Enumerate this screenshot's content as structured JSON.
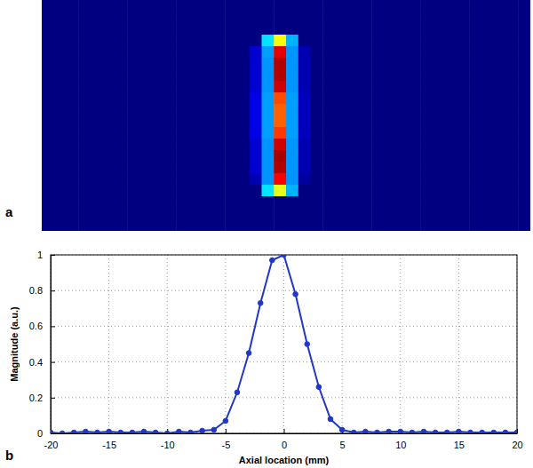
{
  "chart_data": [
    {
      "type": "heatmap",
      "title": "a",
      "color": "jet",
      "zlim": [
        0,
        1
      ],
      "tick_labels": false,
      "values": [
        [
          0,
          0,
          0,
          0,
          0,
          0,
          0,
          0,
          0,
          0,
          0,
          0,
          0,
          0,
          0,
          0,
          0,
          0,
          0,
          0,
          0,
          0,
          0,
          0,
          0,
          0,
          0,
          0,
          0,
          0,
          0,
          0,
          0,
          0,
          0,
          0,
          0,
          0,
          0,
          0
        ],
        [
          0,
          0,
          0,
          0,
          0,
          0,
          0,
          0,
          0,
          0,
          0,
          0,
          0,
          0,
          0,
          0,
          0,
          0,
          0,
          0,
          0,
          0,
          0,
          0,
          0,
          0,
          0,
          0,
          0,
          0,
          0,
          0,
          0,
          0,
          0,
          0,
          0,
          0,
          0,
          0
        ],
        [
          0,
          0,
          0,
          0,
          0,
          0,
          0,
          0,
          0,
          0,
          0,
          0,
          0,
          0,
          0,
          0,
          0,
          0,
          0,
          0,
          0,
          0,
          0,
          0,
          0,
          0,
          0,
          0,
          0,
          0,
          0,
          0,
          0,
          0,
          0,
          0,
          0,
          0,
          0,
          0
        ],
        [
          0,
          0,
          0,
          0,
          0,
          0,
          0,
          0,
          0,
          0,
          0,
          0,
          0,
          0,
          0,
          0,
          0,
          0,
          0.35,
          0.62,
          0.3,
          0,
          0,
          0,
          0,
          0,
          0,
          0,
          0,
          0,
          0,
          0,
          0,
          0,
          0,
          0,
          0,
          0,
          0,
          0
        ],
        [
          0,
          0,
          0,
          0,
          0,
          0,
          0,
          0,
          0,
          0,
          0,
          0,
          0,
          0,
          0,
          0,
          0,
          0.08,
          0.28,
          0.9,
          0.27,
          0.05,
          0,
          0,
          0,
          0,
          0,
          0,
          0,
          0,
          0,
          0,
          0,
          0,
          0,
          0,
          0,
          0,
          0,
          0
        ],
        [
          0,
          0,
          0,
          0,
          0,
          0,
          0,
          0,
          0,
          0,
          0,
          0,
          0,
          0,
          0,
          0,
          0,
          0.08,
          0.27,
          0.95,
          0.27,
          0.05,
          0,
          0,
          0,
          0,
          0,
          0,
          0,
          0,
          0,
          0,
          0,
          0,
          0,
          0,
          0,
          0,
          0,
          0
        ],
        [
          0,
          0,
          0,
          0,
          0,
          0,
          0,
          0,
          0,
          0,
          0,
          0,
          0,
          0,
          0,
          0,
          0,
          0.08,
          0.27,
          0.95,
          0.27,
          0.05,
          0,
          0,
          0,
          0,
          0,
          0,
          0,
          0,
          0,
          0,
          0,
          0,
          0,
          0,
          0,
          0,
          0,
          0
        ],
        [
          0,
          0,
          0,
          0,
          0,
          0,
          0,
          0,
          0,
          0,
          0,
          0,
          0,
          0,
          0,
          0,
          0,
          0.08,
          0.27,
          0.92,
          0.27,
          0.05,
          0,
          0,
          0,
          0,
          0,
          0,
          0,
          0,
          0,
          0,
          0,
          0,
          0,
          0,
          0,
          0,
          0,
          0
        ],
        [
          0,
          0,
          0,
          0,
          0,
          0,
          0,
          0,
          0,
          0,
          0,
          0,
          0,
          0,
          0,
          0,
          0,
          0.1,
          0.28,
          0.8,
          0.28,
          0.06,
          0,
          0,
          0,
          0,
          0,
          0,
          0,
          0,
          0,
          0,
          0,
          0,
          0,
          0,
          0,
          0,
          0,
          0
        ],
        [
          0,
          0,
          0,
          0,
          0,
          0,
          0,
          0,
          0,
          0,
          0,
          0,
          0,
          0,
          0,
          0,
          0,
          0.1,
          0.28,
          0.78,
          0.28,
          0.06,
          0,
          0,
          0,
          0,
          0,
          0,
          0,
          0,
          0,
          0,
          0,
          0,
          0,
          0,
          0,
          0,
          0,
          0
        ],
        [
          0,
          0,
          0,
          0,
          0,
          0,
          0,
          0,
          0,
          0,
          0,
          0,
          0,
          0,
          0,
          0,
          0,
          0.1,
          0.28,
          0.78,
          0.28,
          0.06,
          0,
          0,
          0,
          0,
          0,
          0,
          0,
          0,
          0,
          0,
          0,
          0,
          0,
          0,
          0,
          0,
          0,
          0
        ],
        [
          0,
          0,
          0,
          0,
          0,
          0,
          0,
          0,
          0,
          0,
          0,
          0,
          0,
          0,
          0,
          0,
          0,
          0.1,
          0.28,
          0.82,
          0.28,
          0.06,
          0,
          0,
          0,
          0,
          0,
          0,
          0,
          0,
          0,
          0,
          0,
          0,
          0,
          0,
          0,
          0,
          0,
          0
        ],
        [
          0,
          0,
          0,
          0,
          0,
          0,
          0,
          0,
          0,
          0,
          0,
          0,
          0,
          0,
          0,
          0,
          0,
          0.08,
          0.27,
          0.92,
          0.27,
          0.05,
          0,
          0,
          0,
          0,
          0,
          0,
          0,
          0,
          0,
          0,
          0,
          0,
          0,
          0,
          0,
          0,
          0,
          0
        ],
        [
          0,
          0,
          0,
          0,
          0,
          0,
          0,
          0,
          0,
          0,
          0,
          0,
          0,
          0,
          0,
          0,
          0,
          0.08,
          0.27,
          0.96,
          0.27,
          0.05,
          0,
          0,
          0,
          0,
          0,
          0,
          0,
          0,
          0,
          0,
          0,
          0,
          0,
          0,
          0,
          0,
          0,
          0
        ],
        [
          0,
          0,
          0,
          0,
          0,
          0,
          0,
          0,
          0,
          0,
          0,
          0,
          0,
          0,
          0,
          0,
          0,
          0.08,
          0.27,
          0.95,
          0.27,
          0.05,
          0,
          0,
          0,
          0,
          0,
          0,
          0,
          0,
          0,
          0,
          0,
          0,
          0,
          0,
          0,
          0,
          0,
          0
        ],
        [
          0,
          0,
          0,
          0,
          0,
          0,
          0,
          0,
          0,
          0,
          0,
          0,
          0,
          0,
          0,
          0,
          0,
          0.05,
          0.27,
          0.88,
          0.27,
          0.03,
          0,
          0,
          0,
          0,
          0,
          0,
          0,
          0,
          0,
          0,
          0,
          0,
          0,
          0,
          0,
          0,
          0,
          0
        ],
        [
          0,
          0,
          0,
          0,
          0,
          0,
          0,
          0,
          0,
          0,
          0,
          0,
          0,
          0,
          0,
          0,
          0,
          0,
          0.35,
          0.6,
          0.3,
          0,
          0,
          0,
          0,
          0,
          0,
          0,
          0,
          0,
          0,
          0,
          0,
          0,
          0,
          0,
          0,
          0,
          0,
          0
        ],
        [
          0,
          0,
          0,
          0,
          0,
          0,
          0,
          0,
          0,
          0,
          0,
          0,
          0,
          0,
          0,
          0,
          0,
          0,
          0,
          0,
          0,
          0,
          0,
          0,
          0,
          0,
          0,
          0,
          0,
          0,
          0,
          0,
          0,
          0,
          0,
          0,
          0,
          0,
          0,
          0
        ],
        [
          0,
          0,
          0,
          0,
          0,
          0,
          0,
          0,
          0,
          0,
          0,
          0,
          0,
          0,
          0,
          0,
          0,
          0,
          0,
          0,
          0,
          0,
          0,
          0,
          0,
          0,
          0,
          0,
          0,
          0,
          0,
          0,
          0,
          0,
          0,
          0,
          0,
          0,
          0,
          0
        ],
        [
          0,
          0,
          0,
          0,
          0,
          0,
          0,
          0,
          0,
          0,
          0,
          0,
          0,
          0,
          0,
          0,
          0,
          0,
          0,
          0,
          0,
          0,
          0,
          0,
          0,
          0,
          0,
          0,
          0,
          0,
          0,
          0,
          0,
          0,
          0,
          0,
          0,
          0,
          0,
          0
        ]
      ]
    },
    {
      "type": "line",
      "title": "b",
      "x_label": "Axial location (mm)",
      "y_label": "Magnitude (a.u.)",
      "x": [
        -20,
        -19,
        -18,
        -17,
        -16,
        -15,
        -14,
        -13,
        -12,
        -11,
        -10,
        -9,
        -8,
        -7,
        -6,
        -5,
        -4,
        -3,
        -2,
        -1,
        0,
        1,
        2,
        3,
        4,
        5,
        6,
        7,
        8,
        9,
        10,
        11,
        12,
        13,
        14,
        15,
        16,
        17,
        18,
        19,
        20
      ],
      "values": [
        0.005,
        0,
        0.005,
        0.01,
        0.005,
        0.01,
        0.005,
        0.005,
        0.01,
        0.005,
        0,
        0.01,
        0.005,
        0.015,
        0.02,
        0.07,
        0.23,
        0.45,
        0.73,
        0.97,
        1.0,
        0.78,
        0.5,
        0.26,
        0.08,
        0.02,
        0.005,
        0.01,
        0.005,
        0.01,
        0.01,
        0.005,
        0.01,
        0.005,
        0.005,
        0.01,
        0.005,
        0.005,
        0.005,
        0.005,
        0.005
      ],
      "color": "#2038c8",
      "marker": "circle",
      "line_style": "solid",
      "grid": true,
      "xlim": [
        -20,
        20
      ],
      "xticks": [
        -20,
        -15,
        -10,
        -5,
        0,
        5,
        10,
        15,
        20
      ],
      "ylim": [
        0,
        1
      ],
      "yticks": [
        0,
        0.2,
        0.4,
        0.6,
        0.8,
        1
      ]
    }
  ]
}
